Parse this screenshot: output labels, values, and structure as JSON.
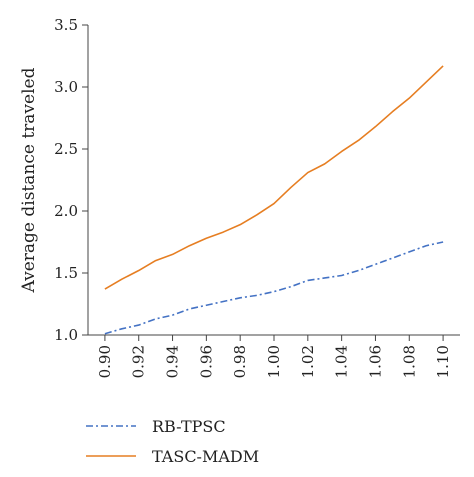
{
  "chart_data": {
    "type": "line",
    "title": "",
    "xlabel": "",
    "ylabel": "Average distance traveled",
    "x": [
      0.9,
      0.91,
      0.92,
      0.93,
      0.94,
      0.95,
      0.96,
      0.97,
      0.98,
      0.99,
      1.0,
      1.01,
      1.02,
      1.03,
      1.04,
      1.05,
      1.06,
      1.07,
      1.08,
      1.09,
      1.1
    ],
    "x_tick_labels": [
      "0.90",
      "0.92",
      "0.94",
      "0.96",
      "0.98",
      "1.00",
      "1.02",
      "1.04",
      "1.06",
      "1.08",
      "1.10"
    ],
    "y_tick_labels": [
      "1.0",
      "1.5",
      "2.0",
      "2.5",
      "3.0",
      "3.5"
    ],
    "xlim": [
      0.89,
      1.11
    ],
    "ylim": [
      1.0,
      3.5
    ],
    "grid": false,
    "legend_position": "bottom",
    "series": [
      {
        "name": "RB-TPSC",
        "color": "#4472c4",
        "dash": "dash-dot",
        "values": [
          1.01,
          1.05,
          1.08,
          1.13,
          1.16,
          1.21,
          1.24,
          1.27,
          1.3,
          1.32,
          1.35,
          1.39,
          1.44,
          1.46,
          1.48,
          1.52,
          1.57,
          1.62,
          1.67,
          1.72,
          1.75
        ]
      },
      {
        "name": "TASC-MADM",
        "color": "#e67e22",
        "dash": "solid",
        "values": [
          1.37,
          1.45,
          1.52,
          1.6,
          1.65,
          1.72,
          1.78,
          1.83,
          1.89,
          1.97,
          2.06,
          2.19,
          2.31,
          2.38,
          2.48,
          2.57,
          2.68,
          2.8,
          2.91,
          3.04,
          3.17
        ]
      }
    ]
  }
}
